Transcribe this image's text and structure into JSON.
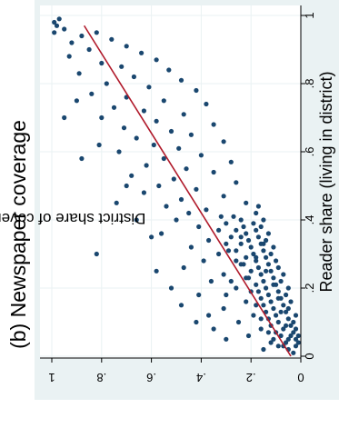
{
  "chart_data": {
    "type": "scatter",
    "title": "(b) Newspaper coverage",
    "xlabel": "Reader share (living in district)",
    "ylabel": "District share of coverage",
    "xlim": [
      0,
      1
    ],
    "ylim": [
      0,
      1
    ],
    "x_ticks": [
      0,
      0.2,
      0.4,
      0.6,
      0.8,
      1
    ],
    "x_tick_labels": [
      "0",
      ".2",
      ".4",
      ".6",
      ".8",
      "1"
    ],
    "y_ticks": [
      0,
      0.2,
      0.4,
      0.6,
      0.8,
      1
    ],
    "y_tick_labels": [
      "0",
      ".2",
      ".4",
      ".6",
      ".8",
      "1"
    ],
    "orientation": "rotated 90 degrees counter-clockwise",
    "marker_color": "#1a476f",
    "fit_line": {
      "x": [
        0,
        0.97
      ],
      "y": [
        0.04,
        0.87
      ],
      "color": "#b0192a"
    },
    "outer_background": "#eaf2f3",
    "plot_background": "#ffffff",
    "grid": true,
    "legend": "none",
    "points": [
      [
        0.97,
        0.98
      ],
      [
        0.98,
        0.99
      ],
      [
        0.99,
        0.97
      ],
      [
        0.95,
        0.99
      ],
      [
        0.96,
        0.95
      ],
      [
        0.94,
        0.88
      ],
      [
        0.95,
        0.82
      ],
      [
        0.93,
        0.76
      ],
      [
        0.92,
        0.92
      ],
      [
        0.91,
        0.7
      ],
      [
        0.9,
        0.85
      ],
      [
        0.89,
        0.64
      ],
      [
        0.88,
        0.93
      ],
      [
        0.87,
        0.58
      ],
      [
        0.86,
        0.8
      ],
      [
        0.85,
        0.72
      ],
      [
        0.84,
        0.53
      ],
      [
        0.83,
        0.89
      ],
      [
        0.82,
        0.67
      ],
      [
        0.81,
        0.48
      ],
      [
        0.8,
        0.78
      ],
      [
        0.79,
        0.61
      ],
      [
        0.78,
        0.42
      ],
      [
        0.77,
        0.84
      ],
      [
        0.76,
        0.7
      ],
      [
        0.75,
        0.55
      ],
      [
        0.74,
        0.38
      ],
      [
        0.73,
        0.75
      ],
      [
        0.72,
        0.63
      ],
      [
        0.71,
        0.47
      ],
      [
        0.7,
        0.8
      ],
      [
        0.69,
        0.58
      ],
      [
        0.68,
        0.35
      ],
      [
        0.67,
        0.71
      ],
      [
        0.66,
        0.52
      ],
      [
        0.65,
        0.44
      ],
      [
        0.64,
        0.66
      ],
      [
        0.63,
        0.31
      ],
      [
        0.62,
        0.59
      ],
      [
        0.61,
        0.49
      ],
      [
        0.6,
        0.73
      ],
      [
        0.59,
        0.4
      ],
      [
        0.58,
        0.55
      ],
      [
        0.57,
        0.28
      ],
      [
        0.56,
        0.62
      ],
      [
        0.55,
        0.46
      ],
      [
        0.54,
        0.35
      ],
      [
        0.53,
        0.68
      ],
      [
        0.52,
        0.51
      ],
      [
        0.51,
        0.26
      ],
      [
        0.5,
        0.57
      ],
      [
        0.49,
        0.42
      ],
      [
        0.48,
        0.63
      ],
      [
        0.47,
        0.31
      ],
      [
        0.46,
        0.48
      ],
      [
        0.45,
        0.22
      ],
      [
        0.44,
        0.54
      ],
      [
        0.43,
        0.38
      ],
      [
        0.42,
        0.45
      ],
      [
        0.41,
        0.27
      ],
      [
        0.4,
        0.5
      ],
      [
        0.39,
        0.19
      ],
      [
        0.38,
        0.41
      ],
      [
        0.37,
        0.33
      ],
      [
        0.36,
        0.56
      ],
      [
        0.35,
        0.24
      ],
      [
        0.34,
        0.37
      ],
      [
        0.33,
        0.15
      ],
      [
        0.32,
        0.44
      ],
      [
        0.31,
        0.29
      ],
      [
        0.3,
        0.33
      ],
      [
        0.29,
        0.18
      ],
      [
        0.28,
        0.39
      ],
      [
        0.27,
        0.23
      ],
      [
        0.26,
        0.47
      ],
      [
        0.25,
        0.14
      ],
      [
        0.24,
        0.31
      ],
      [
        0.23,
        0.21
      ],
      [
        0.22,
        0.36
      ],
      [
        0.21,
        0.11
      ],
      [
        0.2,
        0.26
      ],
      [
        0.19,
        0.17
      ],
      [
        0.18,
        0.41
      ],
      [
        0.17,
        0.09
      ],
      [
        0.16,
        0.22
      ],
      [
        0.15,
        0.15
      ],
      [
        0.14,
        0.31
      ],
      [
        0.13,
        0.08
      ],
      [
        0.12,
        0.19
      ],
      [
        0.11,
        0.13
      ],
      [
        0.1,
        0.25
      ],
      [
        0.09,
        0.06
      ],
      [
        0.08,
        0.16
      ],
      [
        0.07,
        0.1
      ],
      [
        0.06,
        0.21
      ],
      [
        0.05,
        0.05
      ],
      [
        0.04,
        0.12
      ],
      [
        0.03,
        0.07
      ],
      [
        0.02,
        0.15
      ],
      [
        0.01,
        0.03
      ],
      [
        0.3,
        0.82
      ],
      [
        0.5,
        0.7
      ],
      [
        0.62,
        0.81
      ],
      [
        0.75,
        0.9
      ],
      [
        0.7,
        0.95
      ],
      [
        0.58,
        0.88
      ],
      [
        0.45,
        0.74
      ],
      [
        0.4,
        0.66
      ],
      [
        0.35,
        0.6
      ],
      [
        0.25,
        0.58
      ],
      [
        0.2,
        0.52
      ],
      [
        0.15,
        0.48
      ],
      [
        0.1,
        0.42
      ],
      [
        0.08,
        0.35
      ],
      [
        0.05,
        0.3
      ],
      [
        0.12,
        0.37
      ],
      [
        0.18,
        0.3
      ],
      [
        0.22,
        0.28
      ],
      [
        0.28,
        0.26
      ],
      [
        0.33,
        0.3
      ],
      [
        0.06,
        0.01
      ],
      [
        0.08,
        0.02
      ],
      [
        0.1,
        0.03
      ],
      [
        0.12,
        0.02
      ],
      [
        0.14,
        0.05
      ],
      [
        0.16,
        0.04
      ],
      [
        0.18,
        0.06
      ],
      [
        0.2,
        0.05
      ],
      [
        0.22,
        0.08
      ],
      [
        0.24,
        0.07
      ],
      [
        0.26,
        0.09
      ],
      [
        0.28,
        0.1
      ],
      [
        0.3,
        0.12
      ],
      [
        0.32,
        0.11
      ],
      [
        0.34,
        0.14
      ],
      [
        0.36,
        0.13
      ],
      [
        0.38,
        0.16
      ],
      [
        0.4,
        0.15
      ],
      [
        0.42,
        0.18
      ],
      [
        0.44,
        0.17
      ],
      [
        0.03,
        0.02
      ],
      [
        0.04,
        0.01
      ],
      [
        0.05,
        0.02
      ],
      [
        0.06,
        0.04
      ],
      [
        0.07,
        0.03
      ],
      [
        0.09,
        0.04
      ],
      [
        0.11,
        0.05
      ],
      [
        0.13,
        0.06
      ],
      [
        0.15,
        0.07
      ],
      [
        0.17,
        0.08
      ],
      [
        0.19,
        0.09
      ],
      [
        0.21,
        0.1
      ],
      [
        0.23,
        0.11
      ],
      [
        0.25,
        0.12
      ],
      [
        0.27,
        0.13
      ],
      [
        0.29,
        0.14
      ],
      [
        0.31,
        0.15
      ],
      [
        0.33,
        0.16
      ],
      [
        0.35,
        0.17
      ],
      [
        0.37,
        0.18
      ],
      [
        0.02,
        0.05
      ],
      [
        0.03,
        0.09
      ],
      [
        0.04,
        0.06
      ],
      [
        0.05,
        0.11
      ],
      [
        0.06,
        0.08
      ],
      [
        0.07,
        0.13
      ],
      [
        0.08,
        0.07
      ],
      [
        0.09,
        0.12
      ],
      [
        0.1,
        0.09
      ],
      [
        0.11,
        0.16
      ],
      [
        0.12,
        0.1
      ],
      [
        0.13,
        0.14
      ],
      [
        0.14,
        0.11
      ],
      [
        0.15,
        0.18
      ],
      [
        0.16,
        0.12
      ],
      [
        0.17,
        0.16
      ],
      [
        0.18,
        0.13
      ],
      [
        0.19,
        0.2
      ],
      [
        0.2,
        0.14
      ],
      [
        0.21,
        0.18
      ],
      [
        0.22,
        0.15
      ],
      [
        0.23,
        0.22
      ],
      [
        0.24,
        0.16
      ],
      [
        0.25,
        0.2
      ],
      [
        0.26,
        0.17
      ],
      [
        0.27,
        0.24
      ],
      [
        0.28,
        0.18
      ],
      [
        0.29,
        0.22
      ],
      [
        0.3,
        0.19
      ],
      [
        0.31,
        0.26
      ],
      [
        0.32,
        0.2
      ],
      [
        0.33,
        0.24
      ],
      [
        0.34,
        0.21
      ],
      [
        0.35,
        0.28
      ],
      [
        0.36,
        0.22
      ],
      [
        0.37,
        0.26
      ],
      [
        0.38,
        0.23
      ],
      [
        0.39,
        0.3
      ],
      [
        0.4,
        0.24
      ],
      [
        0.41,
        0.32
      ]
    ]
  }
}
